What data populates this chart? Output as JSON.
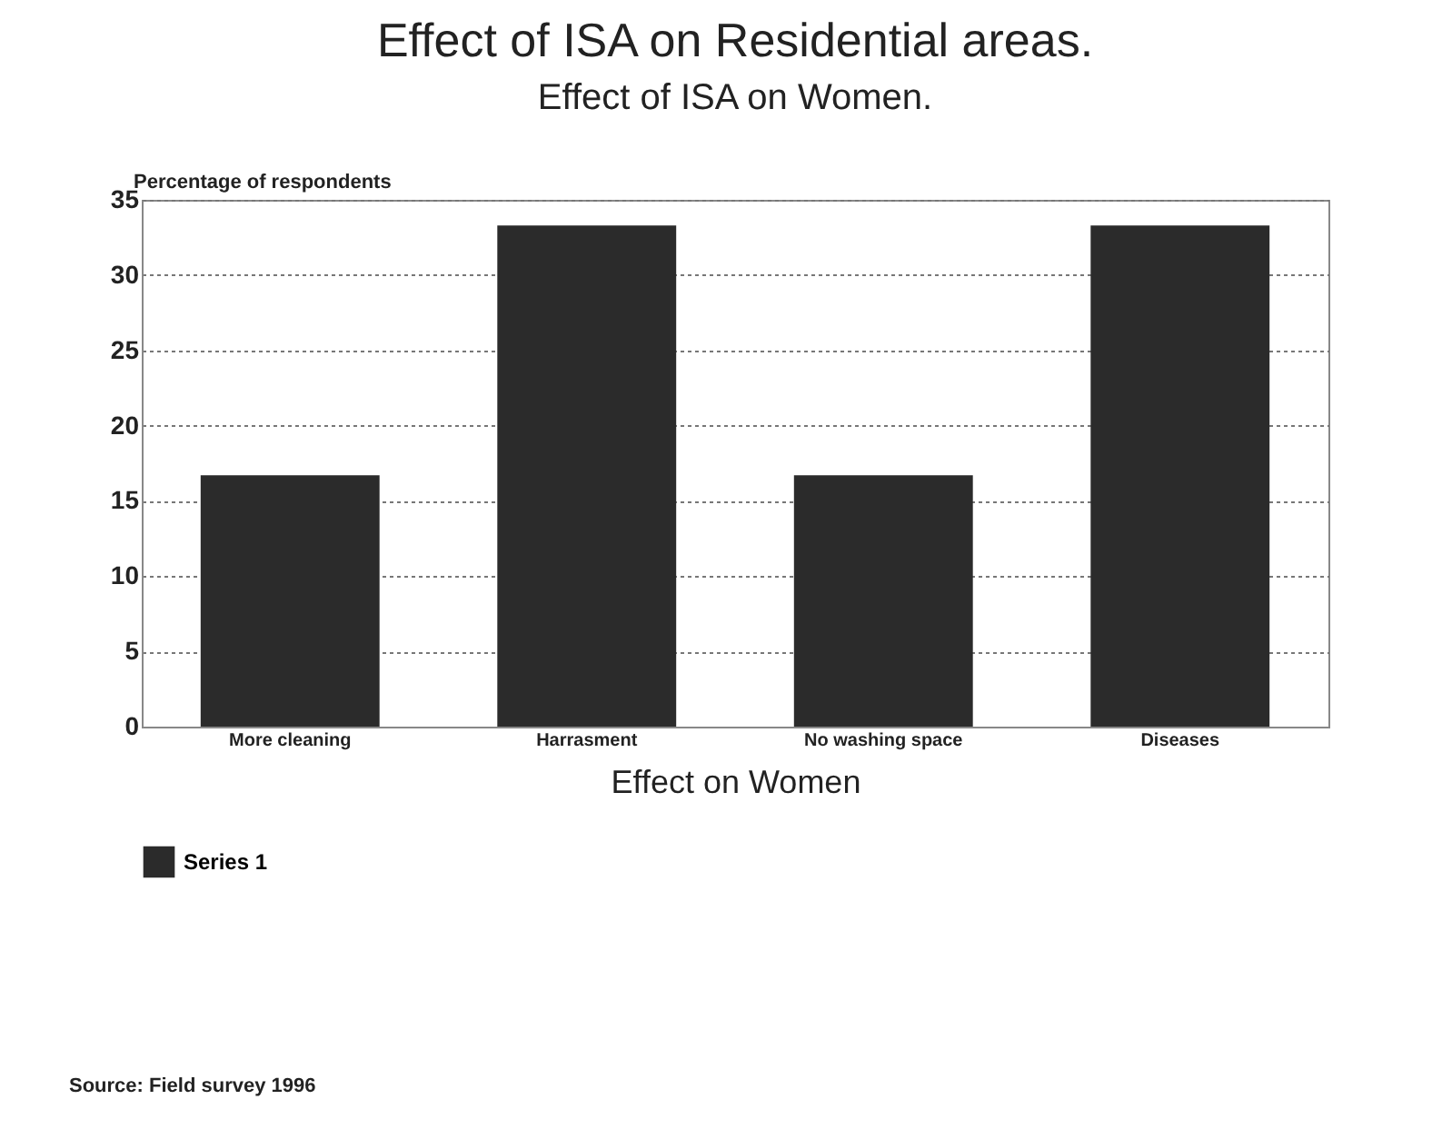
{
  "chart_data": {
    "type": "bar",
    "title": "Effect of ISA on Residential areas.",
    "subtitle": "Effect of ISA on Women.",
    "xlabel": "Effect on Women",
    "ylabel": "Percentage of respondents",
    "categories": [
      "More cleaning",
      "Harrasment",
      "No washing space",
      "Diseases"
    ],
    "series": [
      {
        "name": "Series 1",
        "color": "#2b2b2b",
        "values": [
          16.7,
          33.3,
          16.7,
          33.3
        ]
      }
    ],
    "ylim": [
      0,
      35
    ],
    "yticks": [
      0,
      5,
      10,
      15,
      20,
      25,
      30,
      35
    ],
    "grid": "y",
    "legend": "bottom",
    "annotations": [
      "Source: Field survey 1996"
    ]
  }
}
